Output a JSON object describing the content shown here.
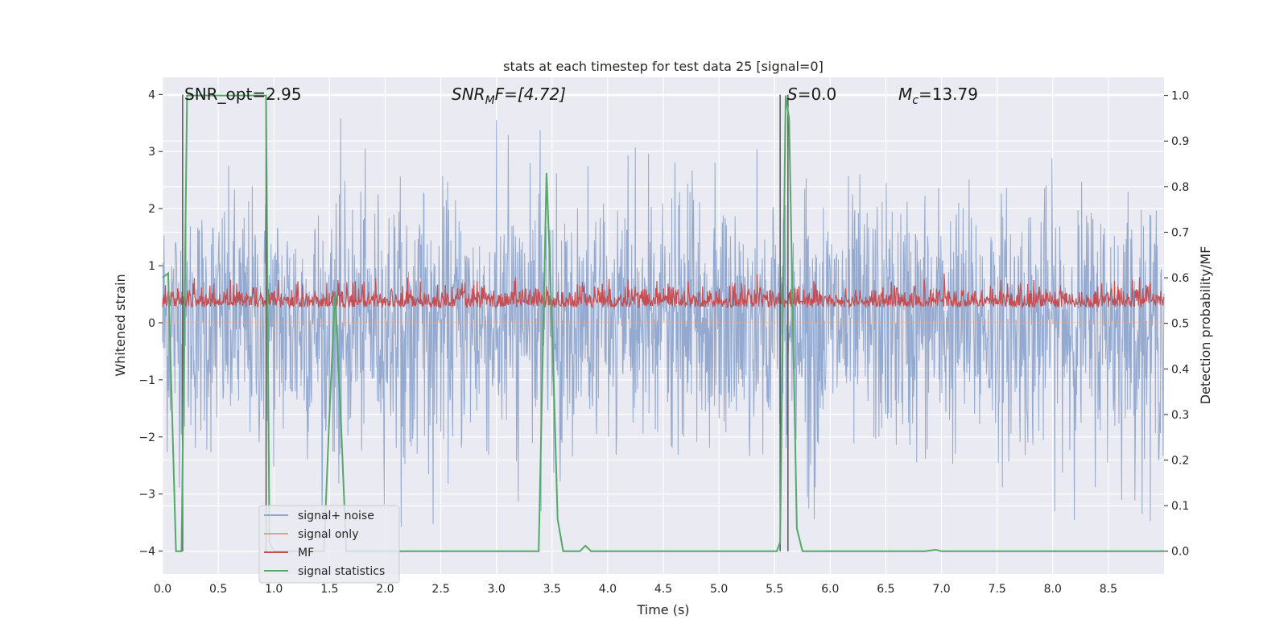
{
  "chart_data": {
    "type": "line",
    "title": "stats at each timestep for test data 25 [signal=0]",
    "xlabel": "Time (s)",
    "ylabel_left": "Whitened strain",
    "ylabel_right": "Detection probability/MF",
    "xlim": [
      0.0,
      9.0
    ],
    "ylim_left": [
      -4.4,
      4.3
    ],
    "ylim_right": [
      -0.05,
      1.04
    ],
    "x_ticks": [
      "0.0",
      "0.5",
      "1.0",
      "1.5",
      "2.0",
      "2.5",
      "3.0",
      "3.5",
      "4.0",
      "4.5",
      "5.0",
      "5.5",
      "6.0",
      "6.5",
      "7.0",
      "7.5",
      "8.0",
      "8.5"
    ],
    "y_ticks_left": [
      "4",
      "3",
      "2",
      "1",
      "0",
      "−1",
      "−2",
      "−3",
      "−4"
    ],
    "y_ticks_right": [
      "1.0",
      "0.9",
      "0.8",
      "0.7",
      "0.6",
      "0.5",
      "0.4",
      "0.3",
      "0.2",
      "0.1",
      "0.0"
    ],
    "grid": true,
    "legend_position": "lower-left",
    "annotations": {
      "snr_opt": "SNR_opt=2.95",
      "snr_mf_base": "SNR",
      "snr_mf_sub": "M",
      "snr_mf_rest": "F=[4.72]",
      "s_base": "S",
      "s_rest": "=0.0",
      "mc_base": "M",
      "mc_sub": "c",
      "mc_rest": "=13.79"
    },
    "series": [
      {
        "name": "signal+ noise",
        "color": "#8fa5cc",
        "axis": "left",
        "amplitude_range": [
          -3.6,
          3.6
        ],
        "note_values": "dense noise series, |x| mostly < 2.5"
      },
      {
        "name": "signal only",
        "color": "#e8a07e",
        "axis": "left",
        "values": "zero"
      },
      {
        "name": "MF",
        "color": "#c44e52",
        "axis": "right",
        "range": [
          0.5,
          0.62
        ]
      },
      {
        "name": "signal statistics",
        "color": "#55a868",
        "axis": "right",
        "x": [
          0.0,
          0.05,
          0.12,
          0.17,
          0.22,
          0.25,
          0.93,
          0.96,
          1.0,
          1.05,
          1.45,
          1.5,
          1.55,
          1.6,
          1.65,
          3.38,
          3.45,
          3.5,
          3.55,
          3.6,
          3.75,
          3.8,
          3.85,
          5.52,
          5.55,
          5.6,
          5.63,
          5.7,
          5.75,
          6.85,
          6.95,
          7.0,
          9.0
        ],
        "y": [
          0.6,
          0.61,
          0.0,
          0.0,
          1.0,
          1.0,
          1.0,
          0.02,
          0.0,
          0.0,
          0.0,
          0.3,
          0.57,
          0.3,
          0.0,
          0.0,
          0.83,
          0.5,
          0.07,
          0.0,
          0.0,
          0.012,
          0.0,
          0.0,
          0.02,
          1.0,
          0.95,
          0.05,
          0.0,
          0.0,
          0.003,
          0.0,
          0.0
        ]
      }
    ],
    "vertical_lines_x": [
      0.18,
      0.93,
      5.55,
      5.62
    ],
    "legend": [
      "signal+ noise",
      "signal only",
      "MF",
      "signal statistics"
    ]
  }
}
